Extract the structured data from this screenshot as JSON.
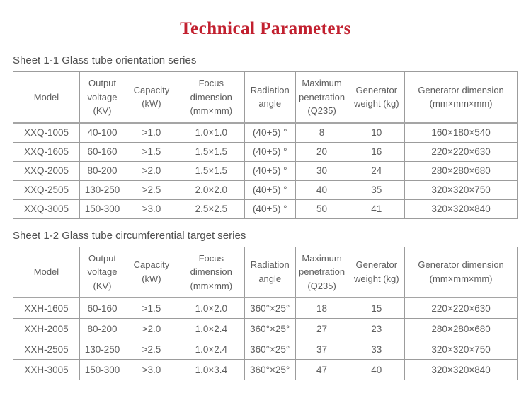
{
  "title": "Technical Parameters",
  "colors": {
    "title_red": "#c2202f",
    "table_text_gray": "#5d5d5d",
    "border_gray": "#9c9c9c"
  },
  "tables": [
    {
      "caption": "Sheet 1-1 Glass tube orientation series",
      "headers": [
        "Model",
        "Output voltage (KV)",
        "Capacity (kW)",
        "Focus dimension (mm×mm)",
        "Radiation angle",
        "Maximum penetration (Q235)",
        "Generator weight (kg)",
        "Generator dimension (mm×mm×mm)"
      ],
      "rows": [
        [
          "XXQ-1005",
          "40-100",
          ">1.0",
          "1.0×1.0",
          "(40+5) °",
          "8",
          "10",
          "160×180×540"
        ],
        [
          "XXQ-1605",
          "60-160",
          ">1.5",
          "1.5×1.5",
          "(40+5) °",
          "20",
          "16",
          "220×220×630"
        ],
        [
          "XXQ-2005",
          "80-200",
          ">2.0",
          "1.5×1.5",
          "(40+5) °",
          "30",
          "24",
          "280×280×680"
        ],
        [
          "XXQ-2505",
          "130-250",
          ">2.5",
          "2.0×2.0",
          "(40+5) °",
          "40",
          "35",
          "320×320×750"
        ],
        [
          "XXQ-3005",
          "150-300",
          ">3.0",
          "2.5×2.5",
          "(40+5) °",
          "50",
          "41",
          "320×320×840"
        ]
      ]
    },
    {
      "caption": "Sheet 1-2 Glass tube circumferential target series",
      "headers": [
        "Model",
        "Output voltage (KV)",
        "Capacity (kW)",
        "Focus dimension (mm×mm)",
        "Radiation angle",
        "Maximum penetration (Q235)",
        "Generator weight (kg)",
        "Generator dimension (mm×mm×mm)"
      ],
      "rows": [
        [
          "XXH-1605",
          "60-160",
          ">1.5",
          "1.0×2.0",
          "360°×25°",
          "18",
          "15",
          "220×220×630"
        ],
        [
          "XXH-2005",
          "80-200",
          ">2.0",
          "1.0×2.4",
          "360°×25°",
          "27",
          "23",
          "280×280×680"
        ],
        [
          "XXH-2505",
          "130-250",
          ">2.5",
          "1.0×2.4",
          "360°×25°",
          "37",
          "33",
          "320×320×750"
        ],
        [
          "XXH-3005",
          "150-300",
          ">3.0",
          "1.0×3.4",
          "360°×25°",
          "47",
          "40",
          "320×320×840"
        ]
      ]
    }
  ]
}
